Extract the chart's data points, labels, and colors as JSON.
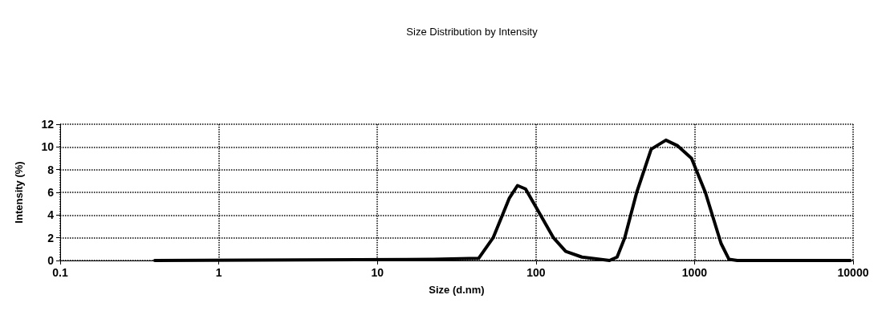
{
  "chart_data": {
    "type": "line",
    "title": "Size Distribution by Intensity",
    "xlabel": "Size (d.nm)",
    "ylabel": "Intensity (%)",
    "x": [
      0.395,
      22.6,
      43.6,
      53.7,
      68,
      76.5,
      86,
      102,
      129,
      154,
      195,
      291,
      325,
      363,
      432,
      533,
      660,
      783,
      957,
      1170,
      1470,
      1650,
      1860,
      9600
    ],
    "series": [
      {
        "color": "#000000",
        "values": [
          0,
          0.1,
          0.2,
          2,
          5.5,
          6.6,
          6.3,
          4.5,
          2,
          0.8,
          0.3,
          0,
          0.3,
          2,
          6,
          9.8,
          10.6,
          10.1,
          9,
          6,
          1.5,
          0.1,
          0,
          0
        ]
      }
    ],
    "log": "x",
    "xlim": [
      0.1,
      10000
    ],
    "xticks": [
      0.1,
      1,
      10,
      100,
      1000,
      10000
    ],
    "ylim": [
      0,
      12
    ],
    "yticks": [
      0,
      2,
      4,
      6,
      8,
      10,
      12
    ],
    "grid": true,
    "marker": "none",
    "line_style": "solid"
  }
}
